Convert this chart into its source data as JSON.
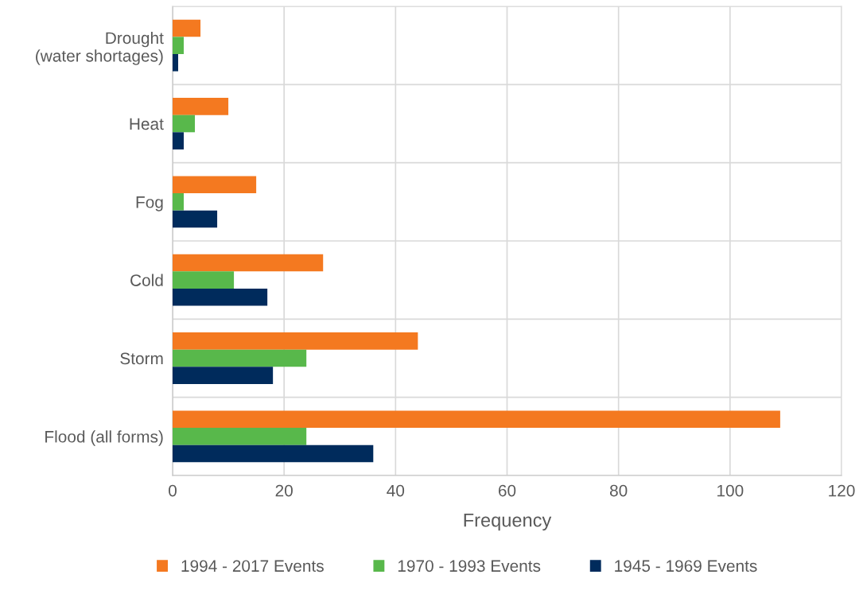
{
  "chart_data": {
    "type": "bar",
    "orientation": "horizontal",
    "xlabel": "Frequency",
    "categories": [
      "Drought\n(water shortages)",
      "Heat",
      "Fog",
      "Cold",
      "Storm",
      "Flood (all forms)"
    ],
    "series": [
      {
        "name": "1994 - 2017 Events",
        "color": "#f47920",
        "values": [
          5,
          10,
          15,
          27,
          44,
          109
        ]
      },
      {
        "name": "1970 - 1993 Events",
        "color": "#58b84b",
        "values": [
          2,
          4,
          2,
          11,
          24,
          24
        ]
      },
      {
        "name": "1945 - 1969 Events",
        "color": "#002b5c",
        "values": [
          1,
          2,
          8,
          17,
          18,
          36
        ]
      }
    ],
    "xlim": [
      0,
      120
    ],
    "xticks": [
      0,
      20,
      40,
      60,
      80,
      100,
      120
    ],
    "grid": true,
    "legend": "bottom"
  }
}
